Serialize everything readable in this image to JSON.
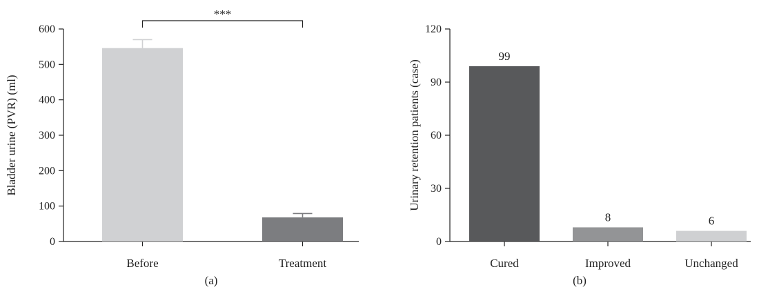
{
  "chart_data": [
    {
      "type": "bar",
      "panel_label": "(a)",
      "categories": [
        "Before",
        "Treatment"
      ],
      "values": [
        546,
        68
      ],
      "error_upper": [
        570,
        79
      ],
      "ylabel": "Bladder urine (PVR) (ml)",
      "ylim": [
        0,
        600
      ],
      "yticks": [
        0,
        100,
        200,
        300,
        400,
        500,
        600
      ],
      "colors": [
        "#d0d1d3",
        "#7c7d80"
      ],
      "significance": {
        "text": "***",
        "between": [
          0,
          1
        ]
      },
      "grid": false
    },
    {
      "type": "bar",
      "panel_label": "(b)",
      "categories": [
        "Cured",
        "Improved",
        "Unchanged"
      ],
      "values": [
        99,
        8,
        6
      ],
      "data_labels": [
        "99",
        "8",
        "6"
      ],
      "ylabel": "Urinary retention patients (case)",
      "ylim": [
        0,
        120
      ],
      "yticks": [
        0,
        30,
        60,
        90,
        120
      ],
      "colors": [
        "#58595b",
        "#939496",
        "#cfd0d2"
      ],
      "grid": false
    }
  ]
}
